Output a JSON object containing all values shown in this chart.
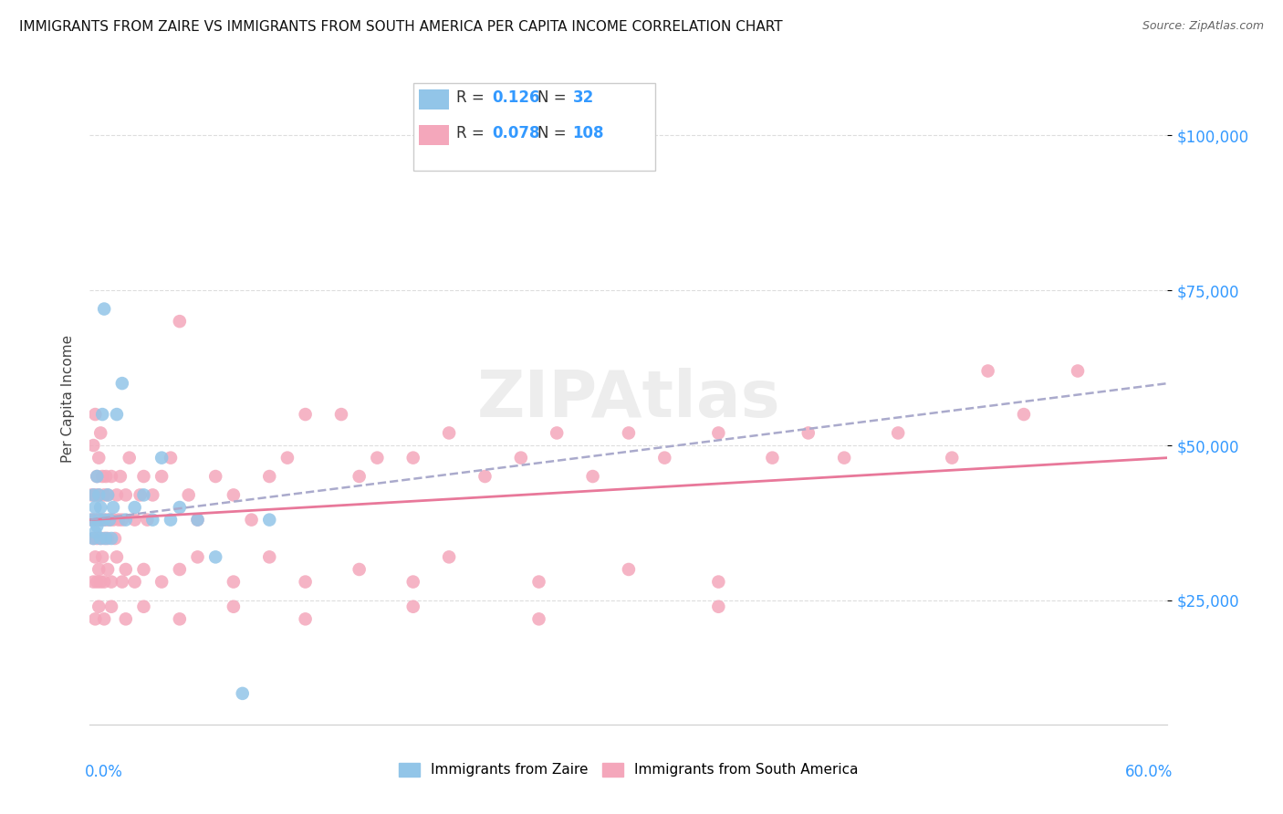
{
  "title": "IMMIGRANTS FROM ZAIRE VS IMMIGRANTS FROM SOUTH AMERICA PER CAPITA INCOME CORRELATION CHART",
  "source": "Source: ZipAtlas.com",
  "ylabel": "Per Capita Income",
  "color_zaire": "#92c5e8",
  "color_south_america": "#f4a7bb",
  "R_zaire": 0.126,
  "N_zaire": 32,
  "R_south": 0.078,
  "N_south": 108,
  "background_color": "#ffffff",
  "xlim": [
    0.0,
    0.6
  ],
  "ylim": [
    5000,
    110000
  ],
  "yticks": [
    25000,
    50000,
    75000,
    100000
  ],
  "ytick_labels": [
    "$25,000",
    "$50,000",
    "$75,000",
    "$100,000"
  ],
  "zaire_x": [
    0.001,
    0.002,
    0.002,
    0.003,
    0.003,
    0.004,
    0.004,
    0.005,
    0.005,
    0.006,
    0.006,
    0.007,
    0.008,
    0.008,
    0.009,
    0.01,
    0.011,
    0.012,
    0.013,
    0.015,
    0.018,
    0.02,
    0.025,
    0.03,
    0.035,
    0.04,
    0.045,
    0.05,
    0.06,
    0.07,
    0.085,
    0.1
  ],
  "zaire_y": [
    38000,
    35000,
    42000,
    36000,
    40000,
    37000,
    45000,
    38000,
    42000,
    35000,
    40000,
    55000,
    72000,
    38000,
    35000,
    42000,
    38000,
    35000,
    40000,
    55000,
    60000,
    38000,
    40000,
    42000,
    38000,
    48000,
    38000,
    40000,
    38000,
    32000,
    10000,
    38000
  ],
  "south_x": [
    0.001,
    0.001,
    0.002,
    0.002,
    0.003,
    0.003,
    0.003,
    0.004,
    0.004,
    0.005,
    0.005,
    0.005,
    0.006,
    0.006,
    0.007,
    0.007,
    0.008,
    0.008,
    0.009,
    0.009,
    0.01,
    0.01,
    0.011,
    0.012,
    0.013,
    0.014,
    0.015,
    0.016,
    0.017,
    0.018,
    0.02,
    0.022,
    0.025,
    0.028,
    0.03,
    0.032,
    0.035,
    0.04,
    0.045,
    0.05,
    0.055,
    0.06,
    0.07,
    0.08,
    0.09,
    0.1,
    0.11,
    0.12,
    0.14,
    0.15,
    0.16,
    0.18,
    0.2,
    0.22,
    0.24,
    0.26,
    0.28,
    0.3,
    0.32,
    0.35,
    0.38,
    0.4,
    0.42,
    0.45,
    0.48,
    0.5,
    0.52,
    0.55,
    0.002,
    0.003,
    0.004,
    0.005,
    0.006,
    0.007,
    0.008,
    0.01,
    0.012,
    0.015,
    0.018,
    0.02,
    0.025,
    0.03,
    0.04,
    0.05,
    0.06,
    0.08,
    0.1,
    0.12,
    0.15,
    0.18,
    0.2,
    0.25,
    0.3,
    0.35,
    0.003,
    0.005,
    0.008,
    0.012,
    0.02,
    0.03,
    0.05,
    0.08,
    0.12,
    0.18,
    0.25,
    0.35
  ],
  "south_y": [
    38000,
    42000,
    35000,
    50000,
    55000,
    42000,
    38000,
    45000,
    35000,
    48000,
    38000,
    42000,
    52000,
    35000,
    45000,
    38000,
    42000,
    35000,
    38000,
    45000,
    42000,
    35000,
    38000,
    45000,
    38000,
    35000,
    42000,
    38000,
    45000,
    38000,
    42000,
    48000,
    38000,
    42000,
    45000,
    38000,
    42000,
    45000,
    48000,
    70000,
    42000,
    38000,
    45000,
    42000,
    38000,
    45000,
    48000,
    55000,
    55000,
    45000,
    48000,
    48000,
    52000,
    45000,
    48000,
    52000,
    45000,
    52000,
    48000,
    52000,
    48000,
    52000,
    48000,
    52000,
    48000,
    62000,
    55000,
    62000,
    28000,
    32000,
    28000,
    30000,
    28000,
    32000,
    28000,
    30000,
    28000,
    32000,
    28000,
    30000,
    28000,
    30000,
    28000,
    30000,
    32000,
    28000,
    32000,
    28000,
    30000,
    28000,
    32000,
    28000,
    30000,
    28000,
    22000,
    24000,
    22000,
    24000,
    22000,
    24000,
    22000,
    24000,
    22000,
    24000,
    22000,
    24000
  ]
}
